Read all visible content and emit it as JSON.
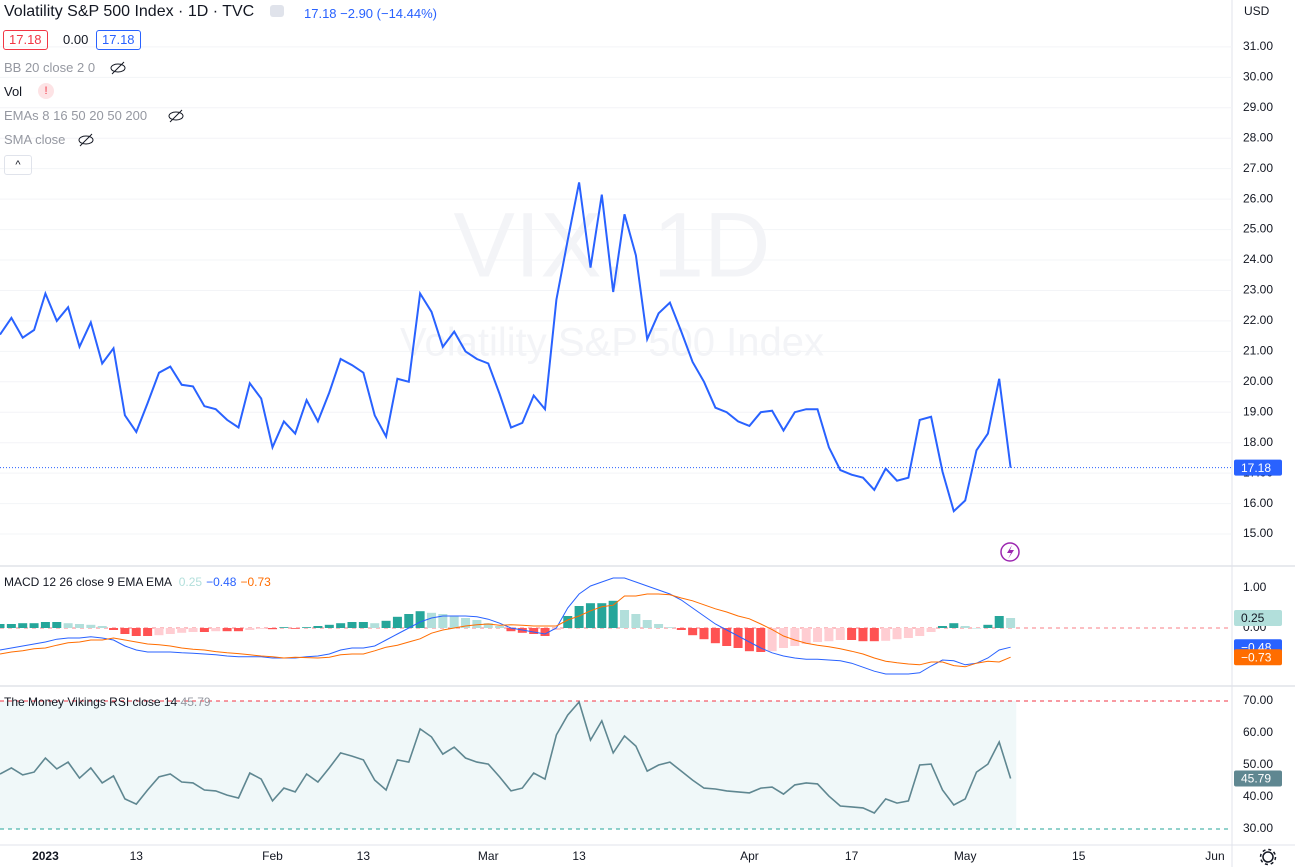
{
  "chart_data": [
    {
      "type": "line",
      "title": "Volatility S&P 500 Index · 1D · TVC",
      "change": "17.18 −2.90 (−14.44%)",
      "boxes": [
        "17.18",
        "0.00",
        "17.18"
      ],
      "indicators": [
        "BB 20 close 2 0",
        "Vol",
        "EMAs 8 16 50 20 50 200",
        "SMA close"
      ],
      "watermark": [
        "VIX, 1D",
        "Volatility S&P 500 Index"
      ],
      "currency": "USD",
      "price_label": "17.18",
      "color": "#2962ff",
      "grid": true,
      "values": [
        21.55,
        22.1,
        21.45,
        21.7,
        22.9,
        22.0,
        22.45,
        21.15,
        21.95,
        20.6,
        21.1,
        18.9,
        18.35,
        19.3,
        20.3,
        20.5,
        19.9,
        19.85,
        19.2,
        19.1,
        18.75,
        18.5,
        19.95,
        19.45,
        17.85,
        18.7,
        18.3,
        19.4,
        18.7,
        19.65,
        20.75,
        20.55,
        20.3,
        18.9,
        18.2,
        20.1,
        20.0,
        22.9,
        22.3,
        21.15,
        21.65,
        21.0,
        20.75,
        20.6,
        19.6,
        18.5,
        18.65,
        19.55,
        19.1,
        22.7,
        24.65,
        26.55,
        23.75,
        26.15,
        22.95,
        25.5,
        24.15,
        21.4,
        22.25,
        22.6,
        21.65,
        20.65,
        20.0,
        19.15,
        19.0,
        18.7,
        18.55,
        19.0,
        19.05,
        18.4,
        19.0,
        19.1,
        19.1,
        17.85,
        17.1,
        16.95,
        16.85,
        16.45,
        17.15,
        16.75,
        16.85,
        18.75,
        18.85,
        17.05,
        15.75,
        16.1,
        17.75,
        18.3,
        20.1,
        17.18
      ],
      "xlim": [
        0,
        108.5
      ],
      "xticks": [
        {
          "value": 4,
          "label": "2023"
        },
        {
          "value": 12,
          "label": "13"
        },
        {
          "value": 24,
          "label": "Feb"
        },
        {
          "value": 32,
          "label": "13"
        },
        {
          "value": 43,
          "label": "Mar"
        },
        {
          "value": 51,
          "label": "13"
        },
        {
          "value": 66,
          "label": "Apr"
        },
        {
          "value": 75,
          "label": "17"
        },
        {
          "value": 85,
          "label": "May"
        },
        {
          "value": 95,
          "label": "15"
        },
        {
          "value": 107,
          "label": "Jun"
        }
      ],
      "ylim": [
        13.95,
        32.54
      ],
      "yticks": [
        {
          "value": 15,
          "label": "15.00"
        },
        {
          "value": 16,
          "label": "16.00"
        },
        {
          "value": 17,
          "label": "17.00"
        },
        {
          "value": 18,
          "label": "18.00"
        },
        {
          "value": 19,
          "label": "19.00"
        },
        {
          "value": 20,
          "label": "20.00"
        },
        {
          "value": 21,
          "label": "21.00"
        },
        {
          "value": 22,
          "label": "22.00"
        },
        {
          "value": 23,
          "label": "23.00"
        },
        {
          "value": 24,
          "label": "24.00"
        },
        {
          "value": 25,
          "label": "25.00"
        },
        {
          "value": 26,
          "label": "26.00"
        },
        {
          "value": 27,
          "label": "27.00"
        },
        {
          "value": 28,
          "label": "28.00"
        },
        {
          "value": 29,
          "label": "29.00"
        },
        {
          "value": 30,
          "label": "30.00"
        },
        {
          "value": 31,
          "label": "31.00"
        }
      ]
    },
    {
      "type": "macd",
      "title": "MACD 12 26 close 9 EMA EMA",
      "ylim": [
        -1.45,
        1.55
      ],
      "yticks": [
        {
          "value": 0,
          "label": "0.00"
        },
        {
          "value": 1,
          "label": "1.00"
        }
      ],
      "series": [
        {
          "type": "bar",
          "color": "#26a69a",
          "colors": [
            "#26a69a",
            "#b2dfdb",
            "#ff5252",
            "#ffcdd2"
          ],
          "last_label": "0.25",
          "values": [
            0.1,
            0.1,
            0.12,
            0.12,
            0.15,
            0.15,
            0.12,
            0.1,
            0.08,
            0.05,
            -0.05,
            -0.15,
            -0.2,
            -0.2,
            -0.18,
            -0.15,
            -0.12,
            -0.1,
            -0.1,
            -0.08,
            -0.08,
            -0.08,
            -0.05,
            -0.02,
            -0.03,
            0.02,
            -0.02,
            0.02,
            0.05,
            0.08,
            0.12,
            0.15,
            0.15,
            0.12,
            0.18,
            0.28,
            0.35,
            0.42,
            0.38,
            0.35,
            0.3,
            0.25,
            0.2,
            0.12,
            0.05,
            -0.08,
            -0.12,
            -0.15,
            -0.2,
            -0.05,
            0.3,
            0.55,
            0.62,
            0.62,
            0.68,
            0.45,
            0.35,
            0.2,
            0.1,
            0.02,
            -0.05,
            -0.18,
            -0.28,
            -0.38,
            -0.45,
            -0.5,
            -0.58,
            -0.6,
            -0.58,
            -0.5,
            -0.45,
            -0.4,
            -0.35,
            -0.33,
            -0.3,
            -0.3,
            -0.33,
            -0.33,
            -0.32,
            -0.28,
            -0.25,
            -0.2,
            -0.1,
            0.05,
            0.12,
            0.05,
            0.0,
            0.08,
            0.3,
            0.25
          ]
        },
        {
          "type": "line",
          "color": "#2962ff",
          "last_label": "−0.48",
          "values": [
            -0.55,
            -0.5,
            -0.45,
            -0.4,
            -0.35,
            -0.28,
            -0.25,
            -0.25,
            -0.22,
            -0.25,
            -0.3,
            -0.45,
            -0.55,
            -0.6,
            -0.6,
            -0.6,
            -0.62,
            -0.63,
            -0.65,
            -0.67,
            -0.7,
            -0.72,
            -0.72,
            -0.72,
            -0.75,
            -0.75,
            -0.75,
            -0.72,
            -0.7,
            -0.65,
            -0.55,
            -0.5,
            -0.5,
            -0.45,
            -0.3,
            -0.15,
            0.0,
            0.15,
            0.25,
            0.3,
            0.3,
            0.3,
            0.28,
            0.22,
            0.12,
            0.0,
            -0.05,
            -0.1,
            -0.15,
            0.0,
            0.5,
            0.85,
            1.05,
            1.15,
            1.25,
            1.25,
            1.15,
            1.05,
            0.95,
            0.85,
            0.7,
            0.5,
            0.3,
            0.1,
            -0.05,
            -0.2,
            -0.35,
            -0.5,
            -0.62,
            -0.7,
            -0.75,
            -0.78,
            -0.78,
            -0.8,
            -0.82,
            -0.88,
            -0.98,
            -1.08,
            -1.15,
            -1.15,
            -1.15,
            -1.12,
            -0.95,
            -0.8,
            -0.82,
            -0.92,
            -0.88,
            -0.75,
            -0.55,
            -0.48
          ]
        },
        {
          "type": "line",
          "color": "#ff6d00",
          "last_label": "−0.73",
          "values": [
            -0.65,
            -0.6,
            -0.57,
            -0.52,
            -0.5,
            -0.43,
            -0.37,
            -0.35,
            -0.3,
            -0.3,
            -0.25,
            -0.3,
            -0.35,
            -0.4,
            -0.42,
            -0.45,
            -0.5,
            -0.53,
            -0.55,
            -0.59,
            -0.62,
            -0.64,
            -0.67,
            -0.7,
            -0.72,
            -0.75,
            -0.73,
            -0.74,
            -0.75,
            -0.73,
            -0.67,
            -0.65,
            -0.65,
            -0.57,
            -0.48,
            -0.43,
            -0.35,
            -0.27,
            -0.13,
            -0.05,
            0.0,
            0.05,
            0.08,
            0.1,
            0.07,
            0.08,
            0.07,
            0.05,
            0.05,
            0.05,
            0.2,
            0.3,
            0.43,
            0.53,
            0.57,
            0.8,
            0.8,
            0.85,
            0.85,
            0.83,
            0.75,
            0.68,
            0.58,
            0.48,
            0.4,
            0.3,
            0.23,
            0.1,
            -0.04,
            -0.2,
            -0.3,
            -0.38,
            -0.43,
            -0.47,
            -0.52,
            -0.58,
            -0.65,
            -0.75,
            -0.83,
            -0.87,
            -0.9,
            -0.92,
            -0.85,
            -0.85,
            -0.94,
            -0.97,
            -0.88,
            -0.83,
            -0.85,
            -0.73
          ]
        }
      ]
    },
    {
      "type": "rsi",
      "title": "The Money Vikings RSI close 14",
      "last_label": "45.79",
      "color": "#5f8791",
      "ylim": [
        25,
        74.7
      ],
      "yticks": [
        {
          "value": 30,
          "label": "30.00"
        },
        {
          "value": 40,
          "label": "40.00"
        },
        {
          "value": 50,
          "label": "50.00"
        },
        {
          "value": 60,
          "label": "60.00"
        },
        {
          "value": 70,
          "label": "70.00"
        }
      ],
      "values": [
        47.2,
        49.1,
        46.9,
        47.8,
        52.2,
        48.8,
        50.9,
        45.9,
        49.1,
        44.4,
        46.6,
        39.4,
        37.8,
        42.2,
        46.3,
        47.2,
        44.7,
        44.4,
        42.2,
        41.9,
        40.6,
        39.7,
        47.5,
        45.6,
        38.8,
        42.8,
        41.6,
        47.2,
        44.7,
        49.1,
        53.8,
        52.8,
        51.6,
        45.3,
        42.2,
        51.6,
        50.9,
        61.3,
        58.8,
        53.4,
        55.6,
        52.2,
        50.9,
        50.3,
        46.3,
        41.9,
        42.8,
        47.5,
        45.6,
        59.4,
        65.6,
        69.7,
        57.8,
        63.8,
        53.8,
        59.1,
        55.9,
        48.1,
        50.0,
        50.9,
        48.1,
        45.3,
        42.8,
        42.5,
        41.9,
        41.6,
        41.3,
        42.8,
        43.1,
        40.9,
        43.8,
        44.4,
        44.1,
        40.3,
        37.2,
        36.9,
        36.6,
        35.0,
        39.4,
        38.1,
        38.8,
        50.0,
        50.3,
        42.2,
        37.5,
        39.4,
        47.8,
        50.3,
        57.2,
        45.79
      ]
    }
  ]
}
